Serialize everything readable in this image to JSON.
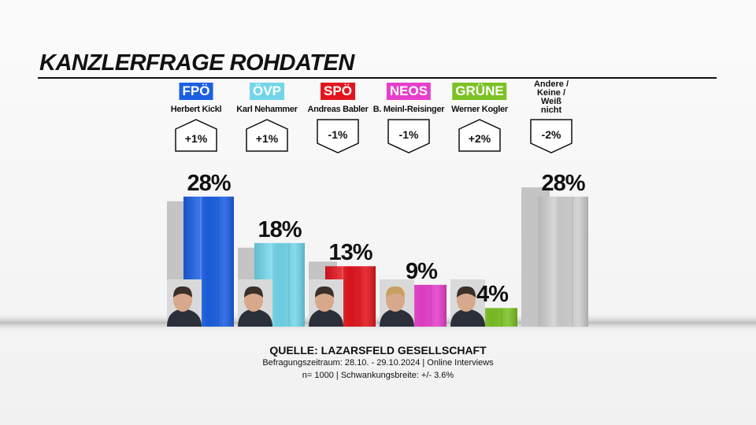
{
  "chart_data": {
    "type": "bar",
    "title": "KANZLERFRAGE ROHDATEN",
    "categories": [
      "FPÖ",
      "ÖVP",
      "SPÖ",
      "NEOS",
      "GRÜNE",
      "Andere / Keine / Weiß nicht"
    ],
    "candidates": [
      "Herbert Kickl",
      "Karl Nehammer",
      "Andreas Babler",
      "B. Meinl-Reisinger",
      "Werner Kogler"
    ],
    "values": [
      28,
      18,
      13,
      9,
      4,
      28
    ],
    "value_labels": [
      "28%",
      "18%",
      "13%",
      "9%",
      "4%",
      "28%"
    ],
    "previous_values": [
      27,
      17,
      14,
      10,
      2,
      30
    ],
    "changes": [
      1,
      1,
      -1,
      -1,
      2,
      -2
    ],
    "change_labels": [
      "+1%",
      "+1%",
      "-1%",
      "-1%",
      "+2%",
      "-2%"
    ],
    "colors": [
      "#1b5fe3",
      "#72d6ea",
      "#e2151d",
      "#e63fcb",
      "#7cc125",
      "#cfcfcf"
    ],
    "previous_color": "#c4c4c4",
    "ylim": [
      0,
      30
    ],
    "source": "QUELLE: LAZARSFELD GESELLSCHAFT",
    "notes": [
      "Befragungszeitraum: 28.10. - 29.10.2024 | Online Interviews",
      "n= 1000 | Schwankungsbreite: +/- 3.6%"
    ]
  }
}
